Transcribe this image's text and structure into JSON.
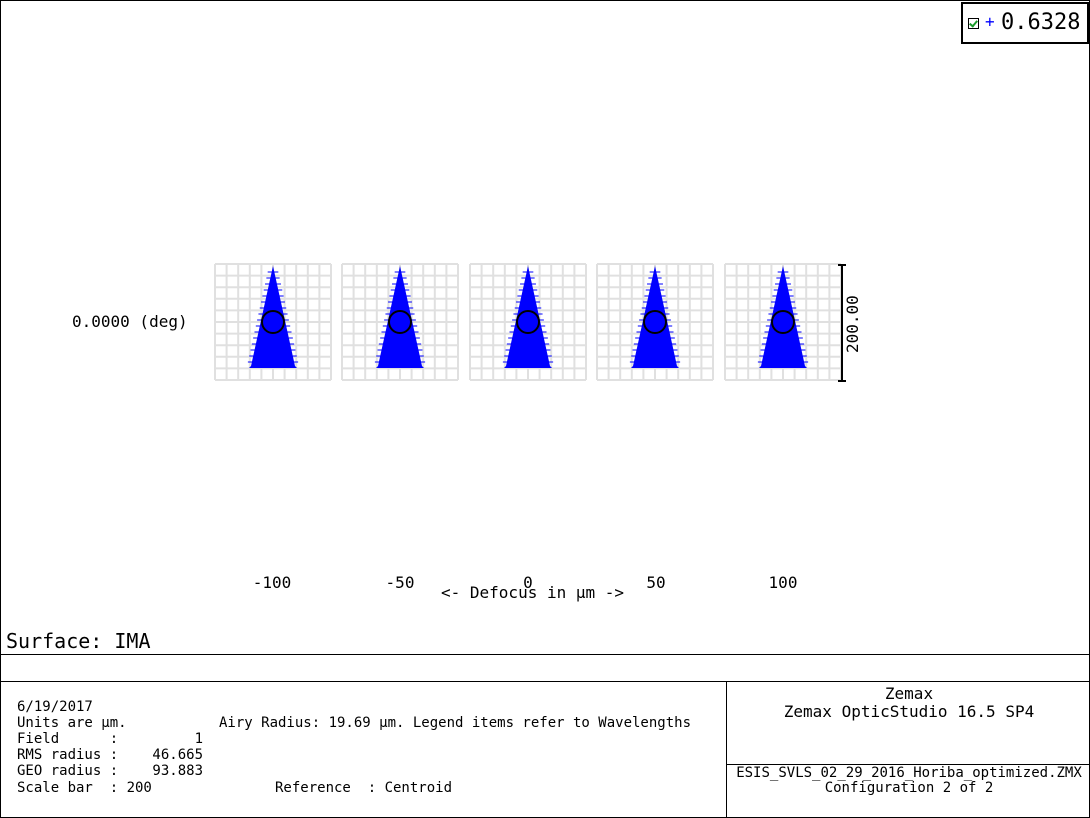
{
  "legend": {
    "checked": true,
    "wavelength": "0.6328"
  },
  "colors": {
    "rays": "#0000ff",
    "grid": "#e0e0e0",
    "airy": "#000000"
  },
  "plot": {
    "field_label": "0.0000 (deg)",
    "defocus_values": [
      "-100",
      "-50",
      "0",
      "50",
      "100"
    ],
    "axis_label": "<- Defocus in µm ->",
    "scale_bar_label": "200.00"
  },
  "surface_label": "Surface: IMA",
  "info": {
    "date": "6/19/2017",
    "units": "Units are µm.",
    "airy_note": "Airy Radius: 19.69 µm. Legend items refer to Wavelengths",
    "field_key": "Field      :",
    "field_val": "1",
    "rms_key": "RMS radius :",
    "rms_val": "46.665",
    "geo_key": "GEO radius :",
    "geo_val": "93.883",
    "scale_bar": "Scale bar  : 200",
    "reference": "Reference  : Centroid"
  },
  "product": {
    "company": "Zemax",
    "version": "Zemax OpticStudio 16.5 SP4",
    "filename": "ESIS_SVLS_02_29_2016_Horiba_optimized.ZMX",
    "configuration": "Configuration 2 of 2"
  }
}
